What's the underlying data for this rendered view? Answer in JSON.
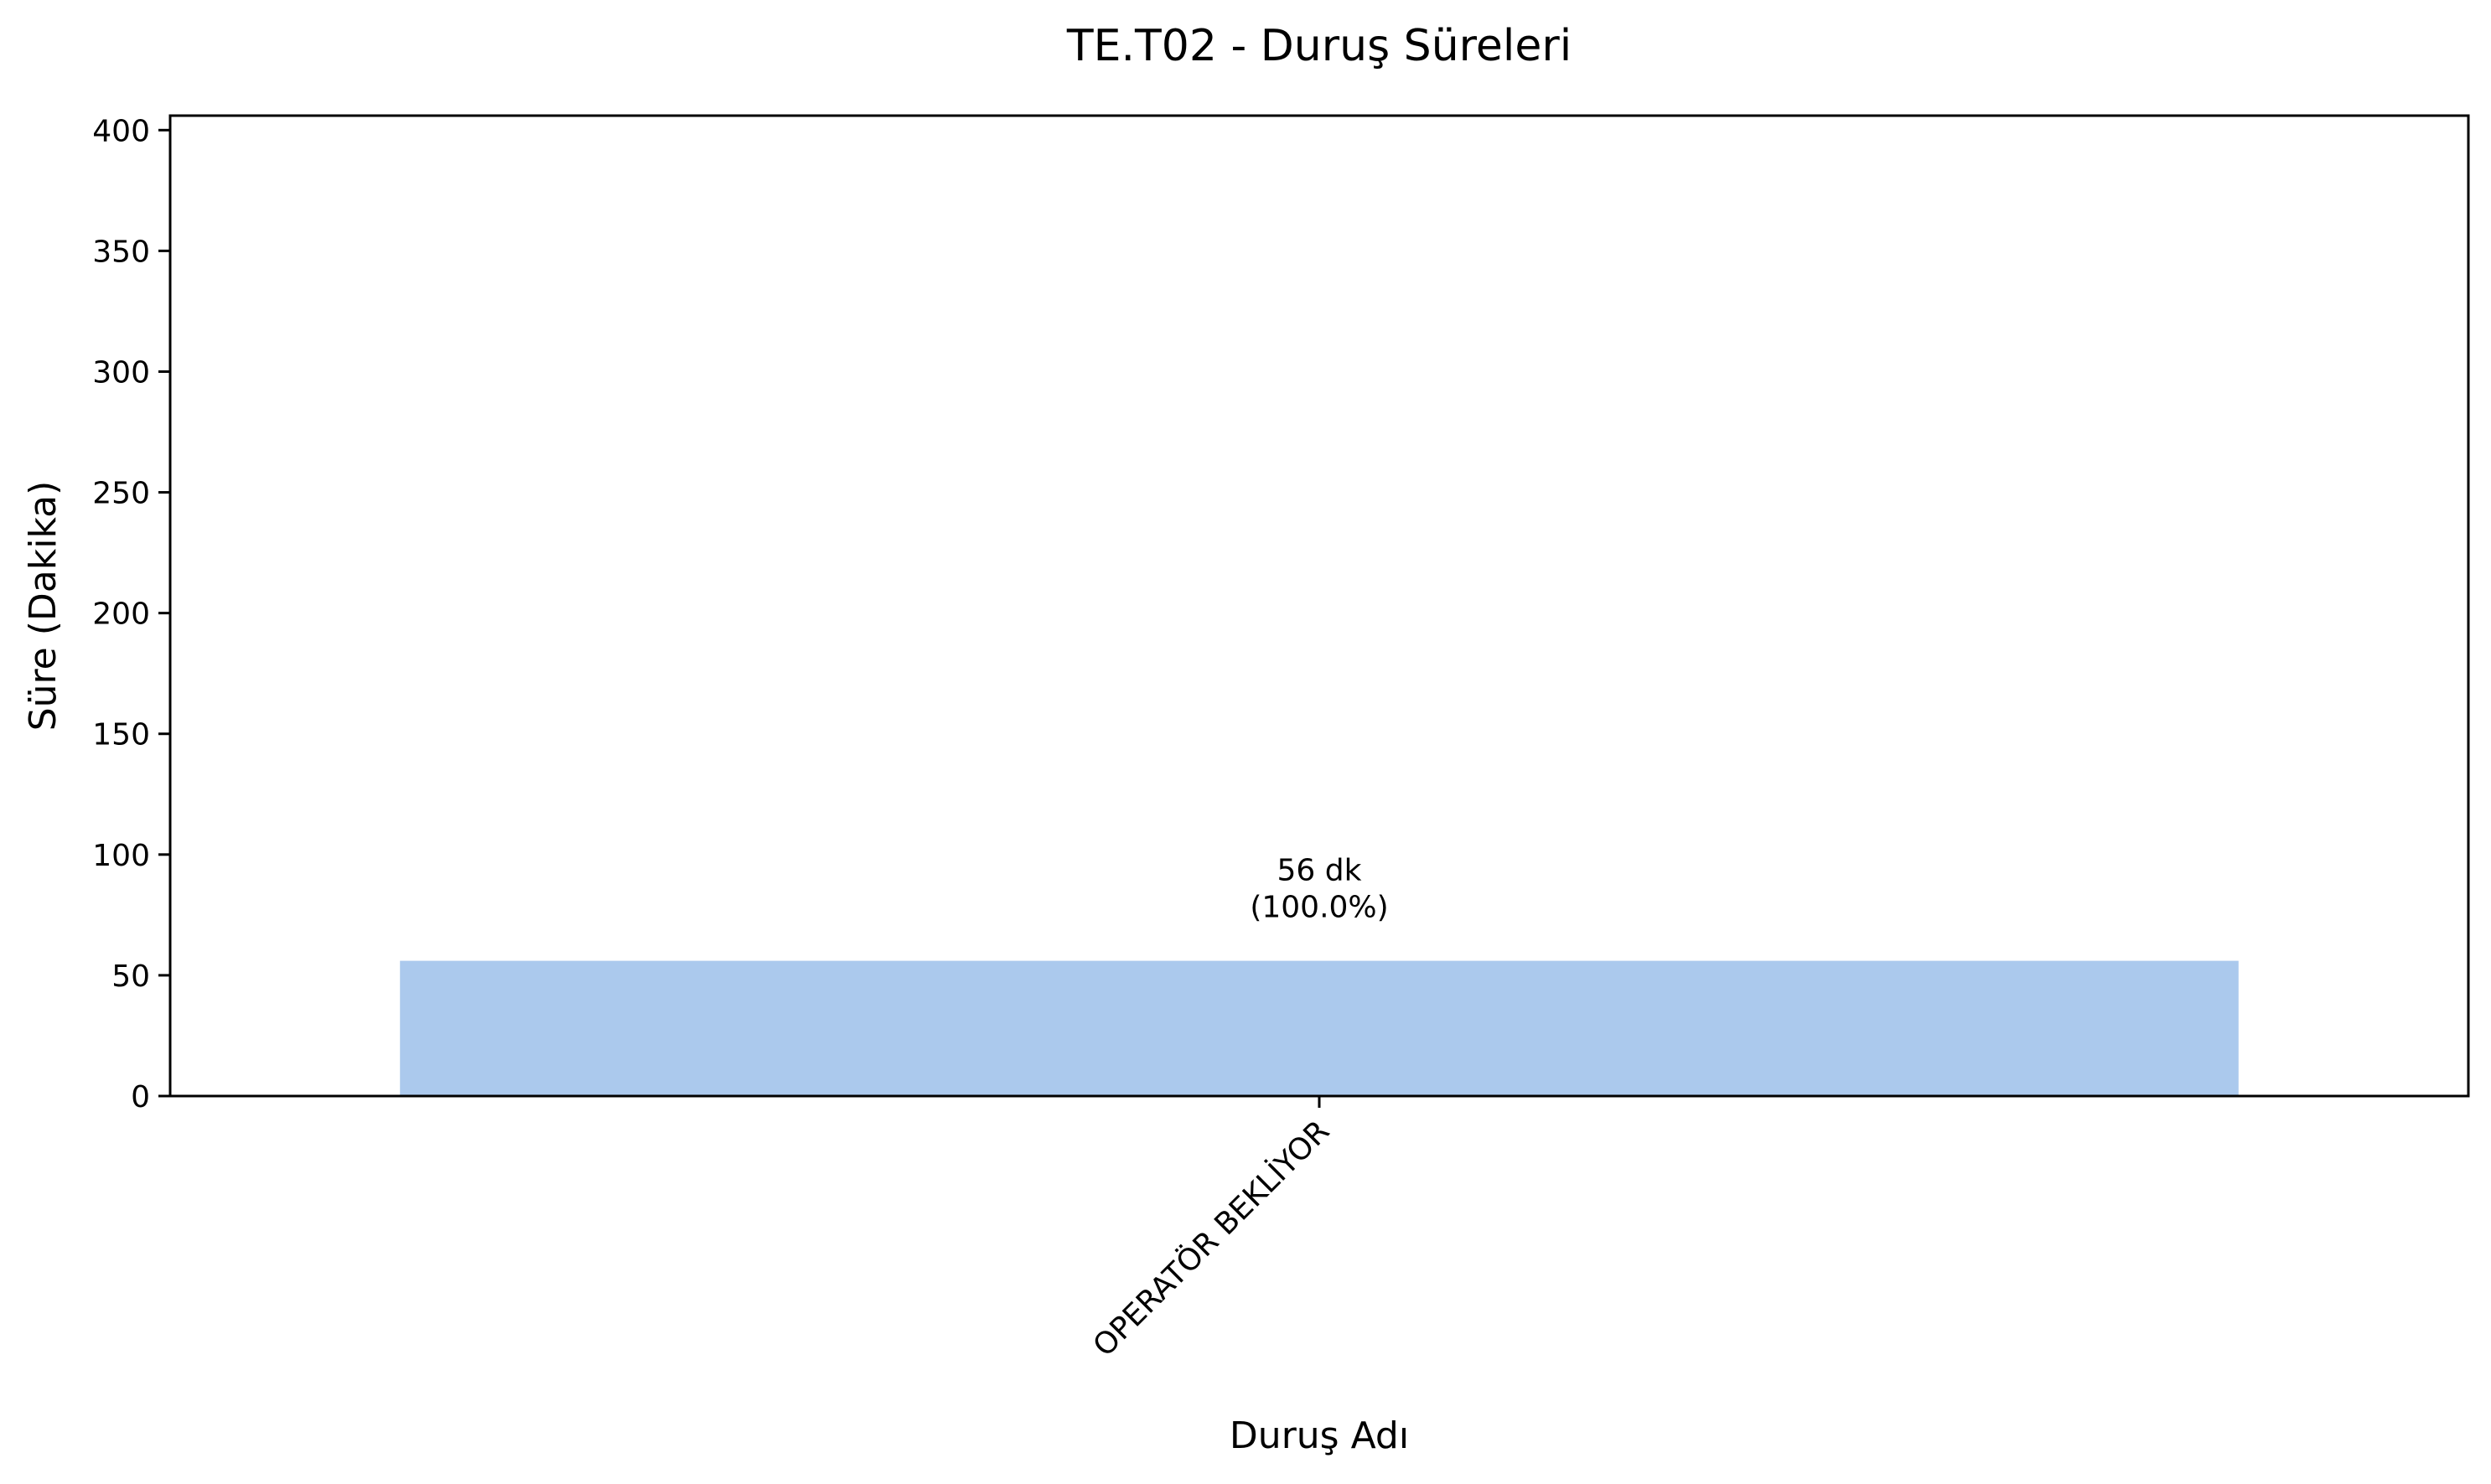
{
  "chart_data": {
    "type": "bar",
    "title": "TE.T02 - Duruş Süreleri",
    "xlabel": "Duruş Adı",
    "ylabel": "Süre (Dakika)",
    "categories": [
      "OPERATÖR BEKLİYOR"
    ],
    "values": [
      56
    ],
    "bar_labels": [
      [
        "56 dk",
        "(100.0%)"
      ]
    ],
    "ylim": [
      0,
      406
    ],
    "yticks": [
      0,
      50,
      100,
      150,
      200,
      250,
      300,
      350,
      400
    ],
    "grid": false,
    "legend": "none",
    "bar_color": "#abc9ed",
    "axis_color": "#000000"
  }
}
